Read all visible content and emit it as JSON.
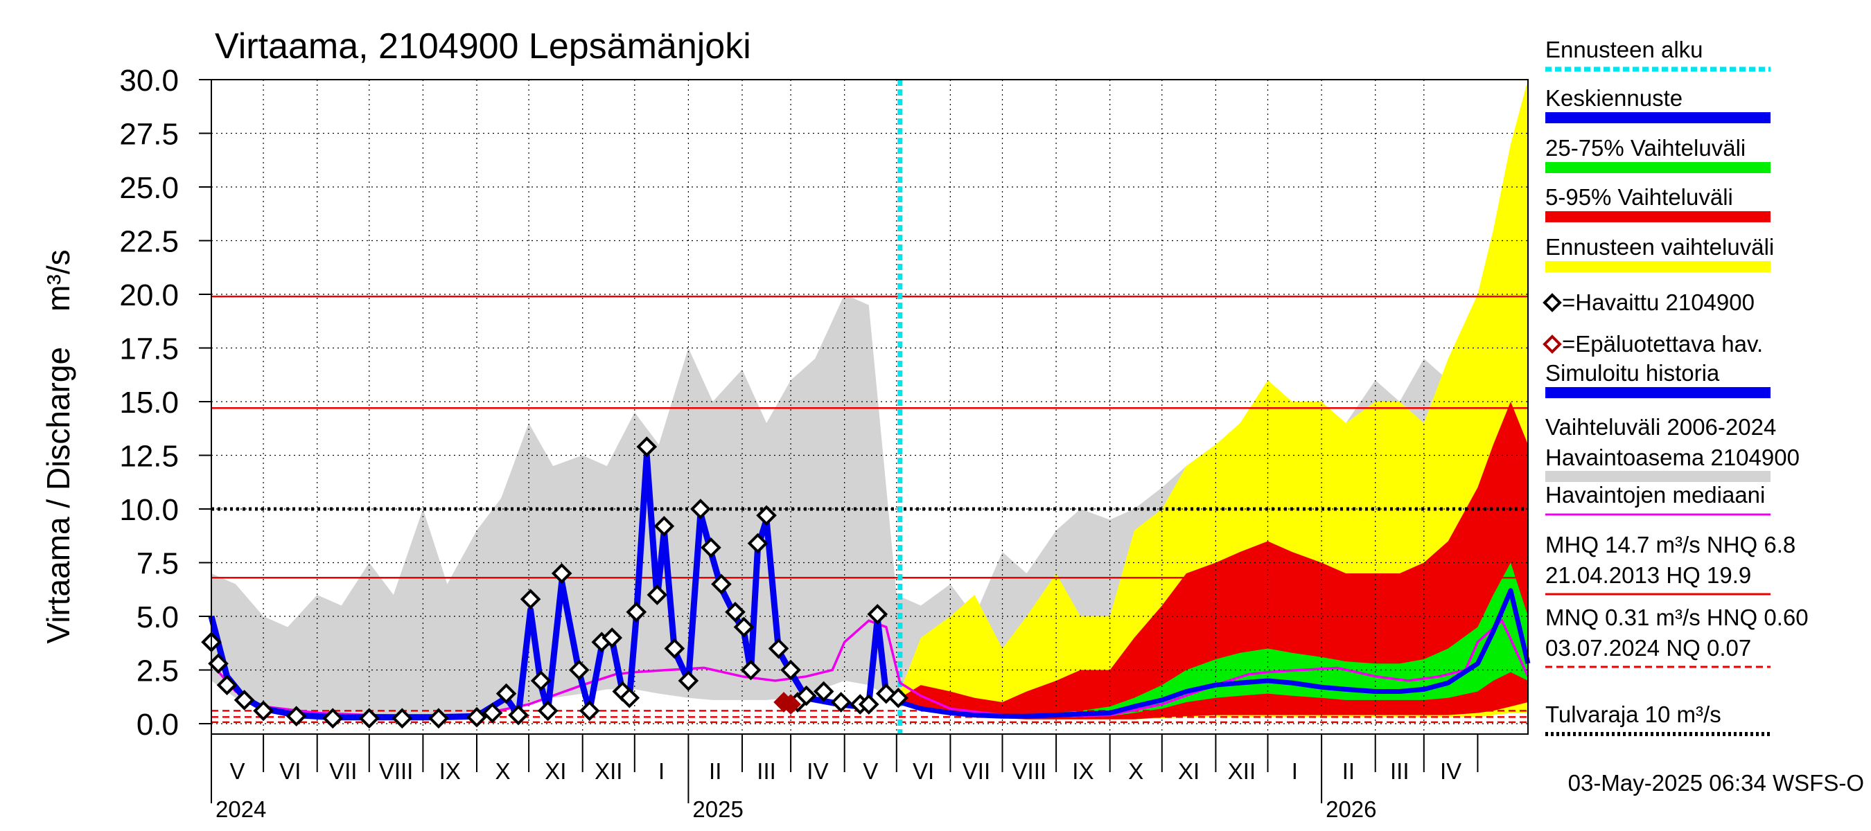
{
  "colors": {
    "forecast_start": "#00e5ee",
    "mean_forecast": "#0000ee",
    "band_25_75": "#00ee00",
    "band_5_95": "#ee0000",
    "forecast_range": "#ffff00",
    "observed": "#000000",
    "unreliable": "#aa0000",
    "simulated_history": "#0000ee",
    "variation_range": "#d3d3d3",
    "median": "#ee00ee",
    "reference_line": "#ee0000",
    "flood_limit": "#000000"
  },
  "chart_data": {
    "type": "line",
    "title": "Virtaama, 2104900 Lepsämänjoki",
    "ylabel": "Virtaama / Discharge    m³/s",
    "ylim": [
      0,
      30
    ],
    "y_ticks": [
      "0.0",
      "2.5",
      "5.0",
      "7.5",
      "10.0",
      "12.5",
      "15.0",
      "17.5",
      "20.0",
      "22.5",
      "25.0",
      "27.5",
      "30.0"
    ],
    "x_range": [
      "2024-04-01",
      "2026-04-30"
    ],
    "month_labels": [
      "V",
      "VI",
      "VII",
      "VIII",
      "IX",
      "X",
      "XI",
      "XII",
      "I",
      "II",
      "III",
      "IV",
      "V",
      "VI",
      "VII",
      "VIII",
      "IX",
      "X",
      "XI",
      "XII",
      "I",
      "II",
      "III",
      "IV"
    ],
    "year_labels": [
      {
        "label": "2024",
        "date": "2024-04-01"
      },
      {
        "label": "2025",
        "date": "2025-01-01"
      },
      {
        "label": "2026",
        "date": "2026-01-01"
      }
    ],
    "forecast_start": "2025-05-03",
    "reference_lines": [
      {
        "name": "HQ",
        "value": 19.9,
        "color": "#ee0000",
        "style": "solid"
      },
      {
        "name": "MHQ",
        "value": 14.7,
        "color": "#ee0000",
        "style": "solid"
      },
      {
        "name": "Tulvaraja",
        "value": 10.0,
        "color": "#000000",
        "style": "dotted"
      },
      {
        "name": "NHQ",
        "value": 6.8,
        "color": "#ee0000",
        "style": "solid"
      },
      {
        "name": "HNQ",
        "value": 0.6,
        "color": "#ee0000",
        "style": "dashed"
      },
      {
        "name": "MNQ",
        "value": 0.31,
        "color": "#ee0000",
        "style": "dashed"
      },
      {
        "name": "NQ",
        "value": 0.07,
        "color": "#ee0000",
        "style": "dashed"
      }
    ],
    "variation_range": {
      "x": [
        "2024-04-01",
        "2024-04-15",
        "2024-05-01",
        "2024-05-15",
        "2024-06-01",
        "2024-06-15",
        "2024-07-01",
        "2024-07-15",
        "2024-08-01",
        "2024-08-15",
        "2024-09-01",
        "2024-09-15",
        "2024-10-01",
        "2024-10-15",
        "2024-11-01",
        "2024-11-15",
        "2024-12-01",
        "2024-12-15",
        "2025-01-01",
        "2025-01-15",
        "2025-02-01",
        "2025-02-15",
        "2025-03-01",
        "2025-03-15",
        "2025-04-01",
        "2025-04-15",
        "2025-05-01",
        "2025-05-15",
        "2025-06-01",
        "2025-06-15",
        "2025-07-01",
        "2025-07-15",
        "2025-08-01",
        "2025-08-15",
        "2025-09-01",
        "2025-09-15",
        "2025-10-01",
        "2025-10-15",
        "2025-11-01",
        "2025-11-15",
        "2025-12-01",
        "2025-12-15",
        "2026-01-01",
        "2026-01-15",
        "2026-02-01",
        "2026-02-15",
        "2026-03-01",
        "2026-03-15",
        "2026-04-01",
        "2026-04-15",
        "2026-04-30"
      ],
      "high": [
        7.0,
        6.5,
        5.0,
        4.5,
        6.0,
        5.5,
        7.5,
        6.0,
        10.0,
        6.5,
        9.0,
        10.5,
        14.0,
        12.0,
        12.5,
        12.0,
        14.5,
        13.0,
        17.5,
        15.0,
        16.5,
        14.0,
        16.0,
        17.0,
        20.0,
        19.5,
        6.0,
        5.5,
        6.5,
        5.0,
        8.0,
        7.0,
        9.0,
        10.0,
        9.5,
        10.0,
        11.0,
        12.0,
        13.0,
        13.5,
        14.0,
        13.0,
        14.5,
        14.0,
        16.0,
        15.0,
        17.0,
        16.0,
        19.0,
        20.0,
        10.0
      ],
      "low": [
        2.0,
        1.2,
        0.6,
        0.4,
        0.3,
        0.3,
        0.3,
        0.3,
        0.3,
        0.3,
        0.4,
        0.6,
        0.9,
        1.2,
        1.4,
        1.6,
        1.6,
        1.4,
        1.2,
        1.1,
        1.1,
        1.1,
        1.2,
        1.5,
        2.0,
        1.8,
        1.0,
        0.7,
        0.5,
        0.4,
        0.3,
        0.3,
        0.3,
        0.3,
        0.4,
        0.5,
        0.7,
        0.9,
        1.1,
        1.2,
        1.3,
        1.2,
        1.2,
        1.1,
        1.1,
        1.1,
        1.1,
        1.3,
        1.8,
        2.0,
        1.2
      ]
    },
    "median": {
      "x": [
        "2024-04-01",
        "2024-04-15",
        "2024-05-01",
        "2024-06-01",
        "2024-07-01",
        "2024-08-01",
        "2024-09-01",
        "2024-10-01",
        "2024-11-01",
        "2024-11-20",
        "2024-12-01",
        "2024-12-20",
        "2025-01-10",
        "2025-02-01",
        "2025-02-20",
        "2025-03-10",
        "2025-03-25",
        "2025-04-01",
        "2025-04-15",
        "2025-04-25",
        "2025-05-03",
        "2025-05-15",
        "2025-06-01",
        "2025-07-01",
        "2025-08-01",
        "2025-09-01",
        "2025-10-01",
        "2025-11-01",
        "2025-11-20",
        "2025-12-01",
        "2025-12-20",
        "2026-01-10",
        "2026-02-01",
        "2026-02-20",
        "2026-03-10",
        "2026-03-25",
        "2026-04-01",
        "2026-04-15",
        "2026-04-30"
      ],
      "values": [
        2.8,
        1.5,
        0.8,
        0.5,
        0.4,
        0.35,
        0.4,
        0.9,
        1.8,
        2.3,
        2.4,
        2.5,
        2.6,
        2.2,
        2.0,
        2.2,
        2.5,
        3.8,
        4.8,
        4.5,
        1.9,
        1.3,
        0.7,
        0.4,
        0.35,
        0.4,
        0.9,
        1.8,
        2.3,
        2.4,
        2.5,
        2.6,
        2.2,
        2.0,
        2.2,
        2.5,
        3.8,
        4.8,
        2.2
      ]
    },
    "observed": {
      "x": [
        "2024-04-01",
        "2024-04-05",
        "2024-04-10",
        "2024-04-20",
        "2024-05-01",
        "2024-05-20",
        "2024-06-10",
        "2024-07-01",
        "2024-07-20",
        "2024-08-10",
        "2024-09-01",
        "2024-09-10",
        "2024-09-18",
        "2024-09-25",
        "2024-10-02",
        "2024-10-08",
        "2024-10-12",
        "2024-10-20",
        "2024-10-30",
        "2024-11-05",
        "2024-11-12",
        "2024-11-18",
        "2024-11-24",
        "2024-11-28",
        "2024-12-02",
        "2024-12-08",
        "2024-12-14",
        "2024-12-18",
        "2024-12-24",
        "2025-01-01",
        "2025-01-08",
        "2025-01-14",
        "2025-01-20",
        "2025-01-28",
        "2025-02-02",
        "2025-02-06",
        "2025-02-10",
        "2025-02-15",
        "2025-02-22",
        "2025-03-01",
        "2025-03-05",
        "2025-03-10",
        "2025-03-20",
        "2025-03-30",
        "2025-04-10",
        "2025-04-15",
        "2025-04-20",
        "2025-04-25",
        "2025-05-02"
      ],
      "values": [
        3.8,
        2.8,
        1.8,
        1.1,
        0.6,
        0.35,
        0.25,
        0.25,
        0.25,
        0.25,
        0.3,
        0.5,
        1.4,
        0.4,
        5.8,
        2.0,
        0.6,
        7.0,
        2.5,
        0.6,
        3.8,
        4.0,
        1.5,
        1.2,
        5.2,
        12.9,
        6.0,
        9.2,
        3.5,
        2.0,
        10.0,
        8.2,
        6.5,
        5.2,
        4.5,
        2.5,
        8.4,
        9.7,
        3.5,
        2.5,
        1.0,
        1.3,
        1.5,
        1.0,
        0.9,
        0.9,
        5.1,
        1.4,
        1.2
      ]
    },
    "unreliable": {
      "x": [
        "2025-02-25",
        "2025-03-01"
      ],
      "values": [
        1.0,
        0.9
      ]
    },
    "simulated_history": {
      "x": [
        "2024-04-01",
        "2024-04-10",
        "2024-04-20",
        "2024-05-01",
        "2024-05-20",
        "2024-06-10",
        "2024-07-01",
        "2024-08-10",
        "2024-09-01",
        "2024-09-18",
        "2024-09-25",
        "2024-10-02",
        "2024-10-08",
        "2024-10-12",
        "2024-10-20",
        "2024-10-30",
        "2024-11-05",
        "2024-11-12",
        "2024-11-18",
        "2024-11-24",
        "2024-11-28",
        "2024-12-02",
        "2024-12-08",
        "2024-12-14",
        "2024-12-18",
        "2024-12-24",
        "2025-01-01",
        "2025-01-08",
        "2025-01-14",
        "2025-01-20",
        "2025-01-28",
        "2025-02-02",
        "2025-02-06",
        "2025-02-10",
        "2025-02-15",
        "2025-02-22",
        "2025-03-01",
        "2025-03-10",
        "2025-03-30",
        "2025-04-10",
        "2025-04-15",
        "2025-04-20",
        "2025-04-25",
        "2025-05-03"
      ],
      "values": [
        5.0,
        2.2,
        1.2,
        0.7,
        0.4,
        0.3,
        0.3,
        0.3,
        0.35,
        1.2,
        0.4,
        5.3,
        1.8,
        0.6,
        6.6,
        2.4,
        0.6,
        3.6,
        3.9,
        1.5,
        1.2,
        5.0,
        12.5,
        5.8,
        9.0,
        3.4,
        2.0,
        9.8,
        8.0,
        6.3,
        5.0,
        4.3,
        2.4,
        8.2,
        9.5,
        3.4,
        2.4,
        1.2,
        0.9,
        0.8,
        0.9,
        4.9,
        1.4,
        1.2
      ]
    },
    "forecast_x": [
      "2025-05-03",
      "2025-05-15",
      "2025-06-01",
      "2025-06-15",
      "2025-07-01",
      "2025-07-15",
      "2025-08-01",
      "2025-08-15",
      "2025-09-01",
      "2025-09-15",
      "2025-10-01",
      "2025-10-15",
      "2025-11-01",
      "2025-11-15",
      "2025-12-01",
      "2025-12-15",
      "2026-01-01",
      "2026-01-15",
      "2026-02-01",
      "2026-02-15",
      "2026-03-01",
      "2026-03-15",
      "2026-04-01",
      "2026-04-10",
      "2026-04-20",
      "2026-04-30"
    ],
    "forecast_range": {
      "high": [
        1.5,
        4.0,
        5.0,
        6.0,
        3.5,
        5.0,
        7.0,
        5.0,
        5.0,
        9.0,
        10.0,
        12.0,
        13.0,
        14.0,
        16.0,
        15.0,
        15.0,
        14.0,
        15.0,
        15.0,
        14.0,
        17.0,
        20.0,
        23.0,
        27.0,
        30.0
      ],
      "low": [
        0.9,
        0.6,
        0.4,
        0.3,
        0.25,
        0.2,
        0.2,
        0.2,
        0.2,
        0.2,
        0.25,
        0.3,
        0.3,
        0.3,
        0.3,
        0.3,
        0.3,
        0.3,
        0.3,
        0.3,
        0.3,
        0.3,
        0.3,
        0.4,
        0.5,
        0.5
      ]
    },
    "band_5_95": {
      "high": [
        1.2,
        1.8,
        1.5,
        1.2,
        1.0,
        1.5,
        2.0,
        2.5,
        2.5,
        4.0,
        5.5,
        7.0,
        7.5,
        8.0,
        8.5,
        8.0,
        7.5,
        7.0,
        7.0,
        7.0,
        7.5,
        8.5,
        11.0,
        13.0,
        15.0,
        13.0
      ],
      "low": [
        0.9,
        0.6,
        0.4,
        0.3,
        0.25,
        0.2,
        0.2,
        0.2,
        0.2,
        0.2,
        0.3,
        0.35,
        0.4,
        0.4,
        0.4,
        0.4,
        0.4,
        0.4,
        0.4,
        0.4,
        0.4,
        0.4,
        0.5,
        0.6,
        0.8,
        1.0
      ]
    },
    "band_25_75": {
      "high": [
        1.0,
        0.8,
        0.6,
        0.5,
        0.4,
        0.4,
        0.5,
        0.6,
        0.8,
        1.2,
        1.8,
        2.5,
        3.0,
        3.3,
        3.5,
        3.3,
        3.1,
        2.9,
        2.8,
        2.8,
        3.0,
        3.5,
        4.5,
        6.0,
        7.5,
        5.0
      ],
      "low": [
        0.9,
        0.6,
        0.45,
        0.35,
        0.3,
        0.3,
        0.3,
        0.3,
        0.35,
        0.5,
        0.7,
        1.0,
        1.2,
        1.3,
        1.4,
        1.3,
        1.2,
        1.1,
        1.1,
        1.1,
        1.1,
        1.2,
        1.5,
        2.0,
        2.4,
        2.0
      ]
    },
    "mean_forecast": {
      "values": [
        1.0,
        0.7,
        0.5,
        0.4,
        0.35,
        0.35,
        0.4,
        0.45,
        0.5,
        0.8,
        1.1,
        1.5,
        1.8,
        1.9,
        2.0,
        1.9,
        1.7,
        1.6,
        1.5,
        1.5,
        1.6,
        1.9,
        2.8,
        4.3,
        6.2,
        2.8
      ]
    }
  },
  "legend": [
    {
      "label": "Ennusteen alku",
      "kind": "dotted-line",
      "color_key": "forecast_start"
    },
    {
      "label": "Keskiennuste",
      "kind": "bar",
      "color_key": "mean_forecast"
    },
    {
      "label": "25-75% Vaihteluväli",
      "kind": "bar",
      "color_key": "band_25_75"
    },
    {
      "label": "5-95% Vaihteluväli",
      "kind": "bar",
      "color_key": "band_5_95"
    },
    {
      "label": "Ennusteen vaihteluväli",
      "kind": "bar",
      "color_key": "forecast_range"
    },
    {
      "label": "=Havaittu 2104900",
      "kind": "diamond",
      "color_key": "observed"
    },
    {
      "label": "=Epäluotettava hav.",
      "kind": "diamond",
      "color_key": "unreliable"
    },
    {
      "label": "Simuloitu historia",
      "kind": "bar",
      "color_key": "simulated_history"
    },
    {
      "label": "Vaihteluväli 2006-2024",
      "label2": " Havaintoasema 2104900",
      "kind": "bar2",
      "color_key": "variation_range"
    },
    {
      "label": "Havaintojen mediaani",
      "kind": "thin",
      "color_key": "median"
    },
    {
      "label": "MHQ 14.7 m³/s NHQ  6.8",
      "label2": "21.04.2013 HQ 19.9",
      "kind": "thin2",
      "color_key": "reference_line"
    },
    {
      "label": "MNQ 0.31 m³/s HNQ 0.60",
      "label2": "03.07.2024 NQ 0.07",
      "kind": "dashed2",
      "color_key": "reference_line"
    },
    {
      "label": "Tulvaraja 10 m³/s",
      "kind": "dotted-black",
      "color_key": "flood_limit"
    }
  ],
  "footer": {
    "timestamp": "03-May-2025 06:34 WSFS-O"
  }
}
